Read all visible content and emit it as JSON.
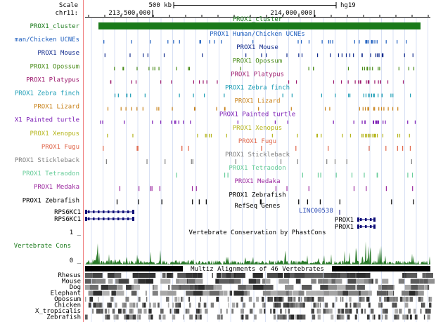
{
  "header": {
    "scale_label": "Scale",
    "chrom_label": "chr11:",
    "scale_text": "500 kb",
    "assembly": "hg19",
    "pos_ticks": [
      "213,500,000",
      "214,000,000"
    ]
  },
  "tracks": [
    {
      "label": "PROX1_cluster",
      "title": "PROX1_cluster",
      "color": "#1a7a1a",
      "kind": "cluster"
    },
    {
      "label": "man/Chicken UCNEs",
      "title": "PROX1 Human/Chicken UCNEs",
      "color": "#1f5fbf",
      "kind": "ticks",
      "seed": 3
    },
    {
      "label": "PROX1 Mouse",
      "title": "PROX1 Mouse",
      "color": "#102a8c",
      "kind": "ticks",
      "seed": 5
    },
    {
      "label": "PROX1 Opossum",
      "title": "PROX1 Opossum",
      "color": "#4a8c1a",
      "kind": "ticks",
      "seed": 7
    },
    {
      "label": "PROX1 Platypus",
      "title": "PROX1 Platypus",
      "color": "#9c1a6e",
      "kind": "ticks",
      "seed": 11
    },
    {
      "label": "PROX1 Zebra finch",
      "title": "PROX1 Zebra finch",
      "color": "#1a9cb4",
      "kind": "ticks",
      "seed": 13
    },
    {
      "label": "PROX1 Lizard",
      "title": "PROX1 Lizard",
      "color": "#c8821a",
      "kind": "ticks",
      "seed": 17
    },
    {
      "label": "X1 Painted turtle",
      "title": "PROX1 Painted turtle",
      "color": "#7a1ab4",
      "kind": "ticks",
      "seed": 19
    },
    {
      "label": "PROX1 Xenopus",
      "title": "PROX1 Xenopus",
      "color": "#b4b41a",
      "kind": "ticks",
      "seed": 23
    },
    {
      "label": "PROX1 Fugu",
      "title": "PROX1 Fugu",
      "color": "#e0664a",
      "kind": "sparse",
      "seed": 29
    },
    {
      "label": "PROX1 Stickleback",
      "title": "PROX1 Stickleback",
      "color": "#808080",
      "kind": "sparse",
      "seed": 31
    },
    {
      "label": "PROX1 Tetraodon",
      "title": "PROX1 Tetraodon",
      "color": "#66cc99",
      "kind": "sparse",
      "seed": 37
    },
    {
      "label": "PROX1 Medaka",
      "title": "PROX1 Medaka",
      "color": "#9c2aa0",
      "kind": "sparse",
      "seed": 41
    },
    {
      "label": "PROX1 Zebrafish",
      "title": "PROX1 Zebrafish",
      "color": "#000000",
      "kind": "sparse",
      "seed": 43
    }
  ],
  "refseq": {
    "title": "RefSeq Genes",
    "genes": [
      {
        "name": "RPS6KC1",
        "side": "left"
      },
      {
        "name": "RPS6KC1",
        "side": "left"
      },
      {
        "name": "LINC00538",
        "side": "mid"
      },
      {
        "name": "PROX1",
        "side": "right"
      },
      {
        "name": "PROX1",
        "side": "right"
      }
    ]
  },
  "conservation": {
    "title": "Vertebrate Conservation by PhastCons",
    "label": "Vertebrate Cons",
    "max_label": "1 _",
    "min_label": "0 _"
  },
  "multiz": {
    "title": "Multiz Alignments of 46 Vertebrates",
    "species": [
      "Rhesus",
      "Mouse",
      "Dog",
      "Elephant",
      "Opossum",
      "Chicken",
      "X_tropicalis",
      "Zebrafish"
    ]
  },
  "colors": {
    "grid": "#d8e0f4",
    "cons": "#2a7a2a",
    "gene": "#0c0c78",
    "separator": "#f08080"
  }
}
